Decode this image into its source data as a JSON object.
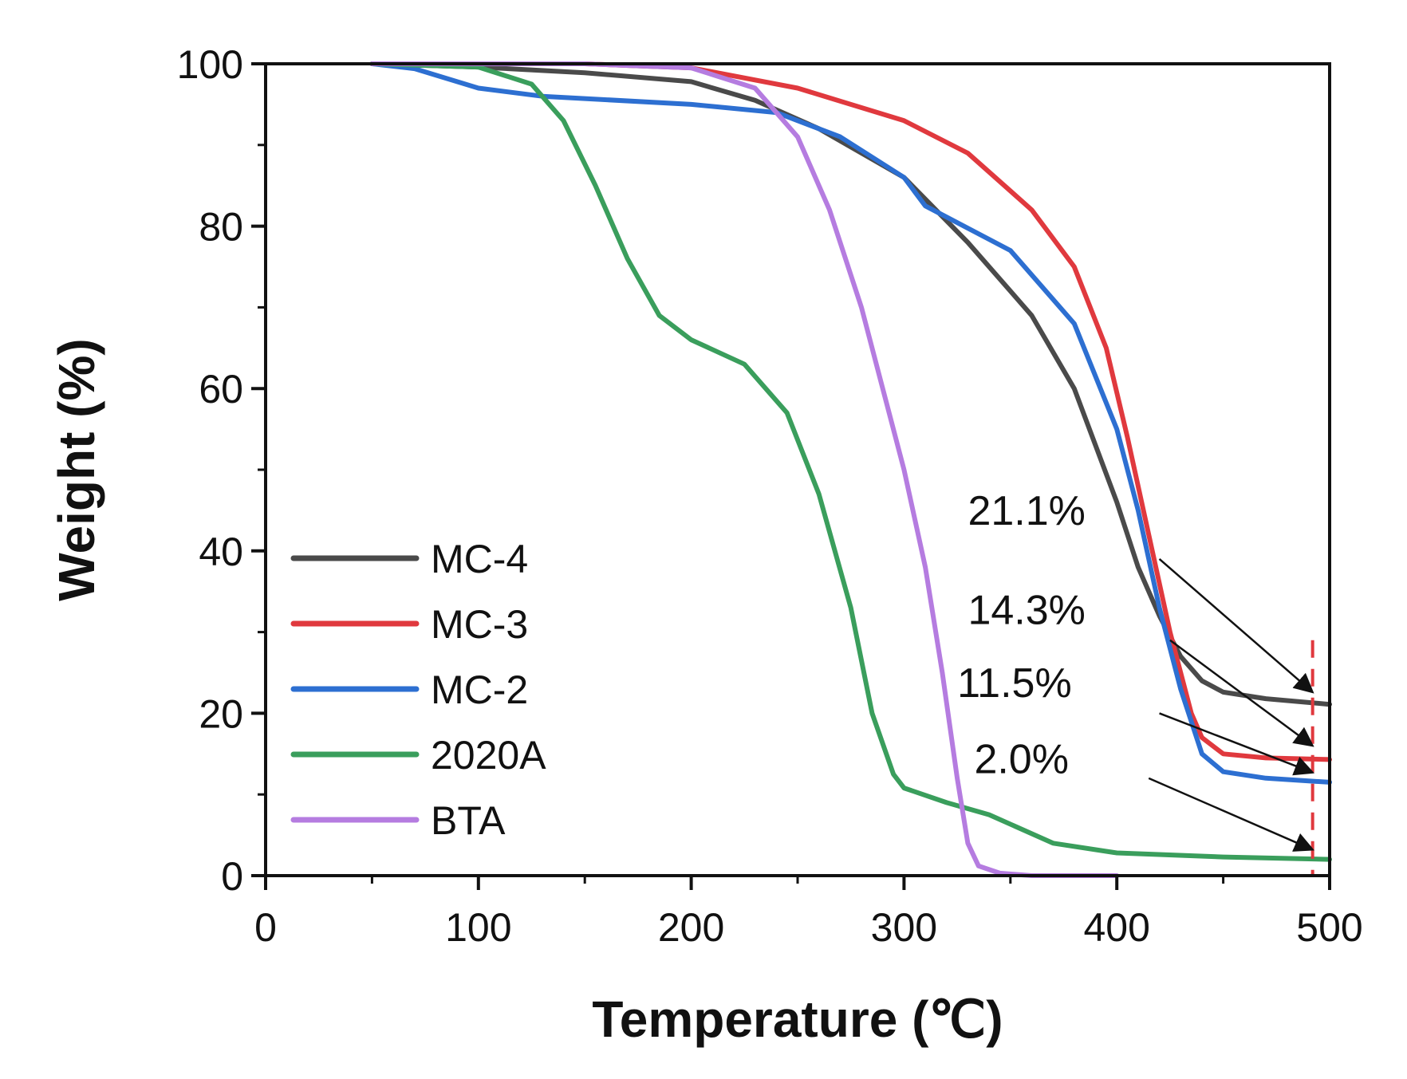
{
  "chart_data": {
    "type": "line",
    "xlabel": "Temperature (℃)",
    "ylabel": "Weight (%)",
    "xlim": [
      0,
      500
    ],
    "ylim": [
      0,
      100
    ],
    "xticks": [
      0,
      100,
      200,
      300,
      400,
      500
    ],
    "yticks": [
      0,
      20,
      40,
      60,
      80,
      100
    ],
    "grid": false,
    "legend_position": "bottom-left",
    "series": [
      {
        "name": "MC-4",
        "color": "#4a4a4a",
        "x": [
          50,
          100,
          150,
          200,
          230,
          260,
          300,
          330,
          360,
          380,
          400,
          410,
          420,
          430,
          440,
          450,
          470,
          500
        ],
        "y": [
          100,
          99.6,
          98.9,
          97.8,
          95.5,
          92,
          86,
          78,
          69,
          60,
          46,
          38,
          32,
          27,
          24,
          22.6,
          21.8,
          21.1
        ]
      },
      {
        "name": "MC-3",
        "color": "#e0393e",
        "x": [
          50,
          100,
          150,
          200,
          250,
          300,
          330,
          360,
          380,
          395,
          405,
          415,
          425,
          435,
          440,
          450,
          470,
          500
        ],
        "y": [
          100,
          100,
          100,
          99.5,
          97,
          93,
          89,
          82,
          75,
          65,
          54,
          42,
          30,
          20,
          17,
          15,
          14.5,
          14.3
        ]
      },
      {
        "name": "MC-2",
        "color": "#2d6fd1",
        "x": [
          50,
          70,
          100,
          130,
          200,
          240,
          270,
          300,
          310,
          350,
          380,
          400,
          410,
          420,
          430,
          440,
          450,
          470,
          500
        ],
        "y": [
          100,
          99.4,
          97,
          96,
          95,
          94,
          91,
          86,
          82.5,
          77,
          68,
          55,
          45,
          33,
          23,
          15,
          12.8,
          12,
          11.5
        ]
      },
      {
        "name": "2020A",
        "color": "#3a9e5c",
        "x": [
          50,
          100,
          125,
          140,
          155,
          170,
          185,
          200,
          225,
          245,
          260,
          275,
          285,
          295,
          300,
          320,
          340,
          370,
          400,
          450,
          500
        ],
        "y": [
          100,
          99.6,
          97.5,
          93,
          85,
          76,
          69,
          66,
          63,
          57,
          47,
          33,
          20,
          12.5,
          10.8,
          9,
          7.5,
          4,
          2.8,
          2.3,
          2.0
        ]
      },
      {
        "name": "BTA",
        "color": "#b57ce0",
        "x": [
          50,
          150,
          200,
          230,
          250,
          265,
          280,
          290,
          300,
          310,
          318,
          325,
          330,
          335,
          345,
          360,
          400
        ],
        "y": [
          100,
          100,
          99.5,
          97,
          91,
          82,
          70,
          60,
          50,
          38,
          25,
          12,
          4,
          1.2,
          0.3,
          0,
          0
        ]
      }
    ],
    "annotations": [
      {
        "text": "21.1%",
        "label_at": [
          330,
          43.2
        ],
        "arrow_from": [
          420,
          39
        ],
        "arrow_to": [
          492,
          22.6
        ]
      },
      {
        "text": "14.3%",
        "label_at": [
          330,
          31
        ],
        "arrow_from": [
          425,
          29
        ],
        "arrow_to": [
          492,
          16
        ]
      },
      {
        "text": "11.5%",
        "label_at": [
          325,
          22
        ],
        "arrow_from": [
          420,
          20
        ],
        "arrow_to": [
          492,
          12.7
        ]
      },
      {
        "text": "2.0%",
        "label_at": [
          333,
          12.6
        ],
        "arrow_from": [
          415,
          12
        ],
        "arrow_to": [
          492,
          3.2
        ]
      }
    ],
    "reference_line": {
      "x": 492,
      "color": "#e0393e",
      "style": "dashed"
    }
  }
}
